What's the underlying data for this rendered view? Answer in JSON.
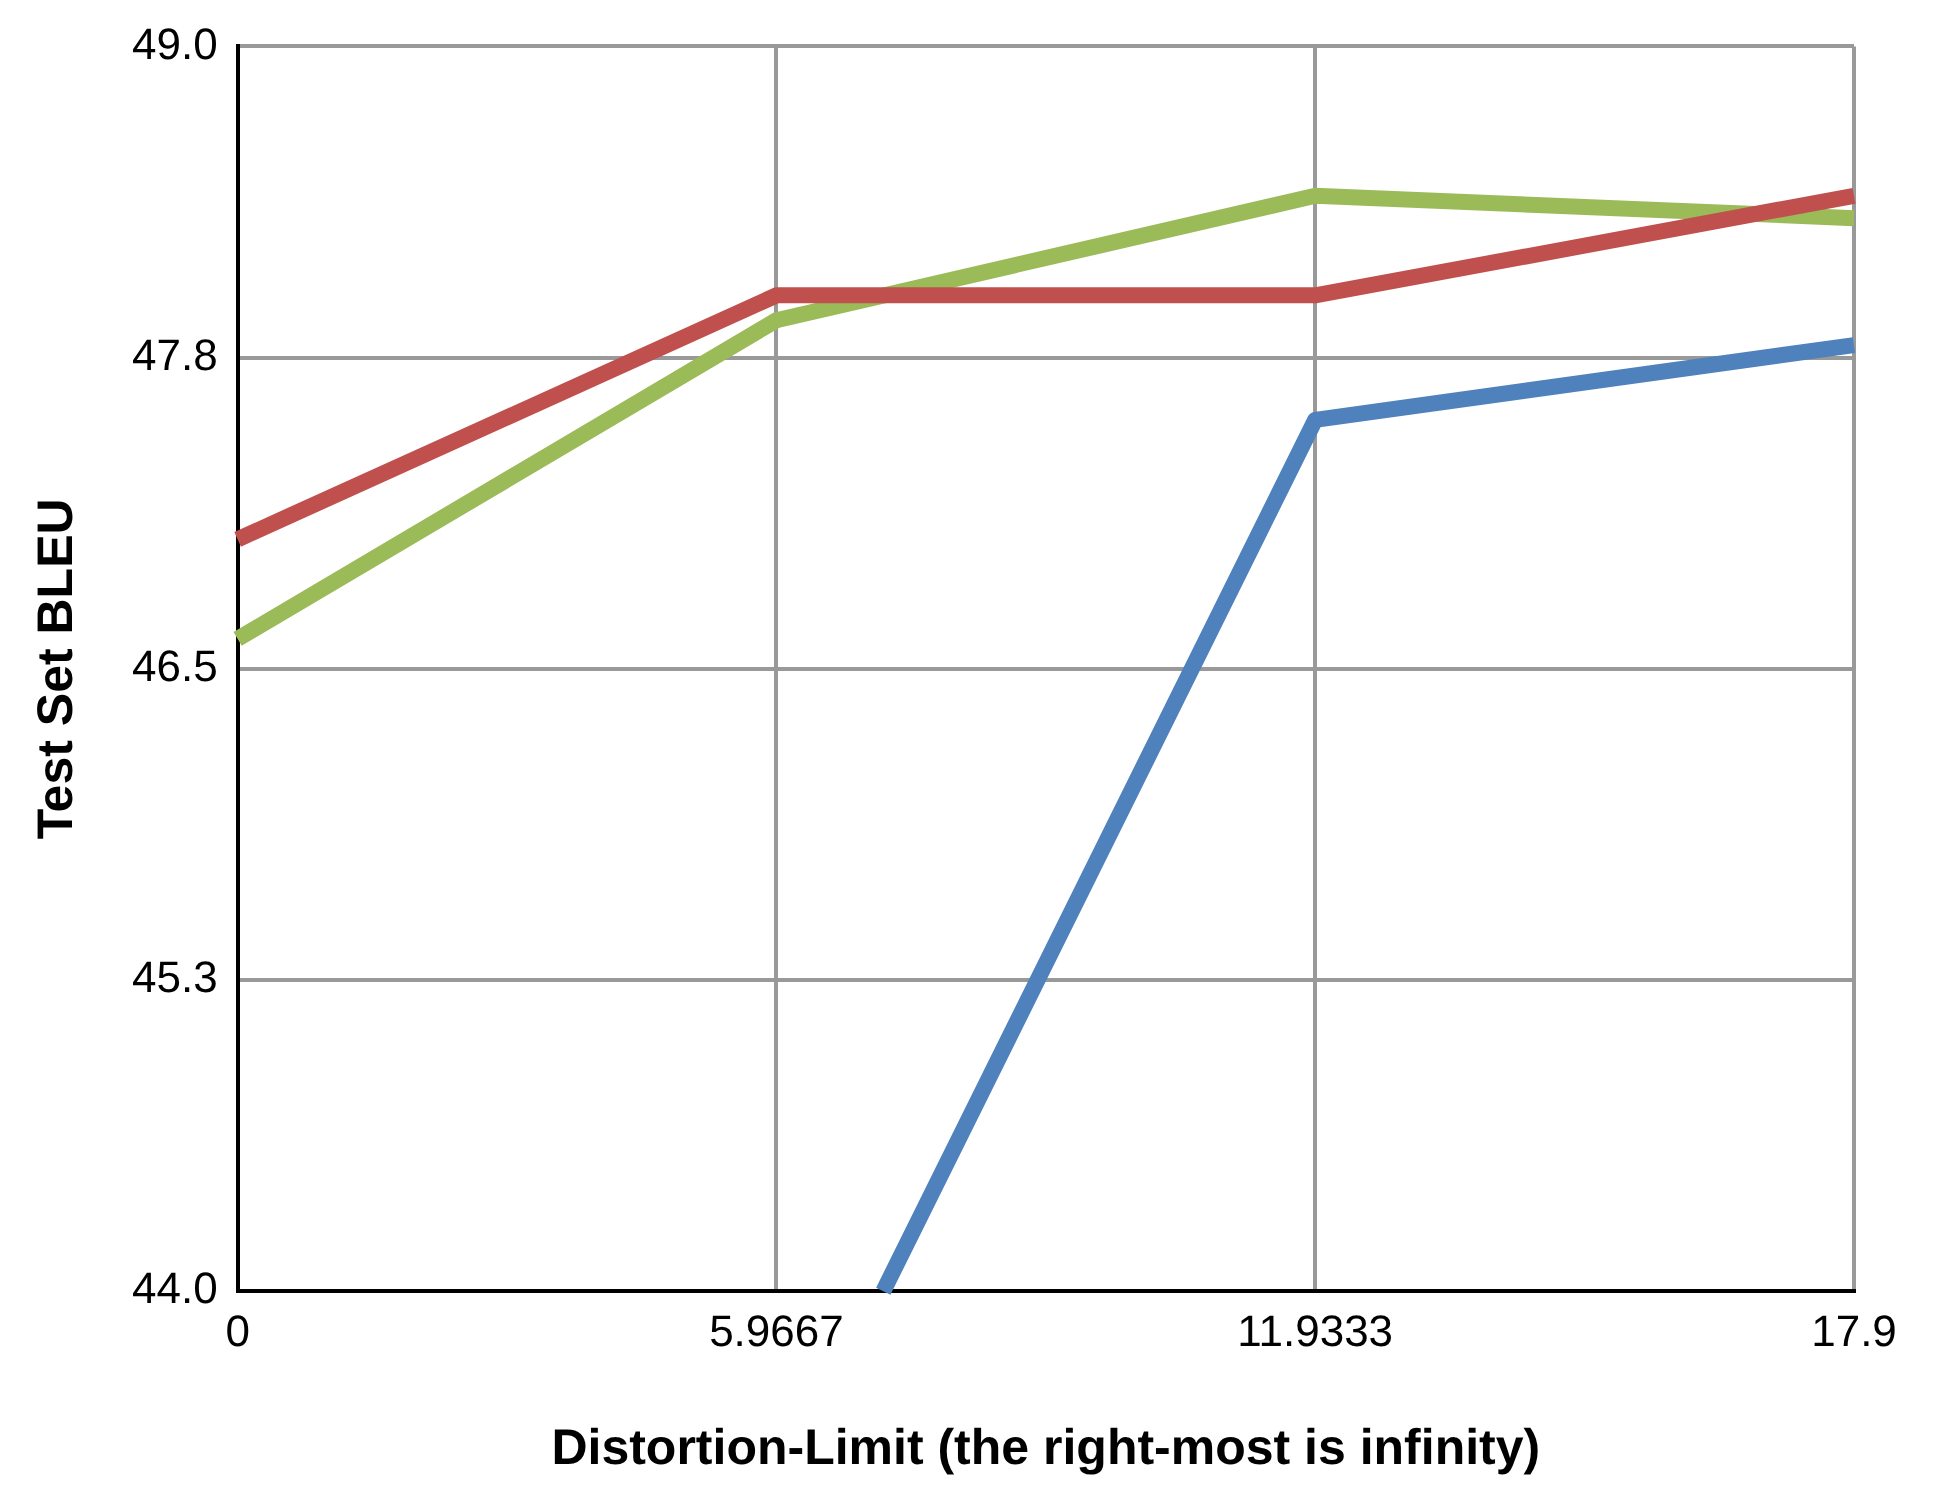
{
  "chart_data": {
    "type": "line",
    "xlabel": "Distortion-Limit (the right-most is infinity)",
    "ylabel": "Test Set BLEU",
    "xlim": [
      0,
      17.9
    ],
    "xticks": [
      0,
      5.9667,
      11.9333,
      17.9
    ],
    "ylim": [
      44,
      49
    ],
    "yticks": [
      {
        "value": 44,
        "label": "44.0"
      },
      {
        "value": 45.25,
        "label": "45.3"
      },
      {
        "value": 46.5,
        "label": "46.5"
      },
      {
        "value": 47.75,
        "label": "47.8"
      },
      {
        "value": 49,
        "label": "49.0"
      }
    ],
    "grid": true,
    "legend": false,
    "marker": "none",
    "series": [
      {
        "color": "#4f81bd",
        "x": [
          7.15,
          11.9333,
          17.9
        ],
        "values": [
          44,
          47.5,
          47.8
        ]
      },
      {
        "color": "#c0504d",
        "x": [
          0,
          5.9667,
          11.9333,
          17.9
        ],
        "values": [
          47.02,
          48.0,
          48.0,
          48.4
        ]
      },
      {
        "color": "#9bbb59",
        "x": [
          0,
          5.9667,
          11.9333,
          17.9
        ],
        "values": [
          46.62,
          47.9,
          48.4,
          48.31
        ]
      }
    ]
  }
}
